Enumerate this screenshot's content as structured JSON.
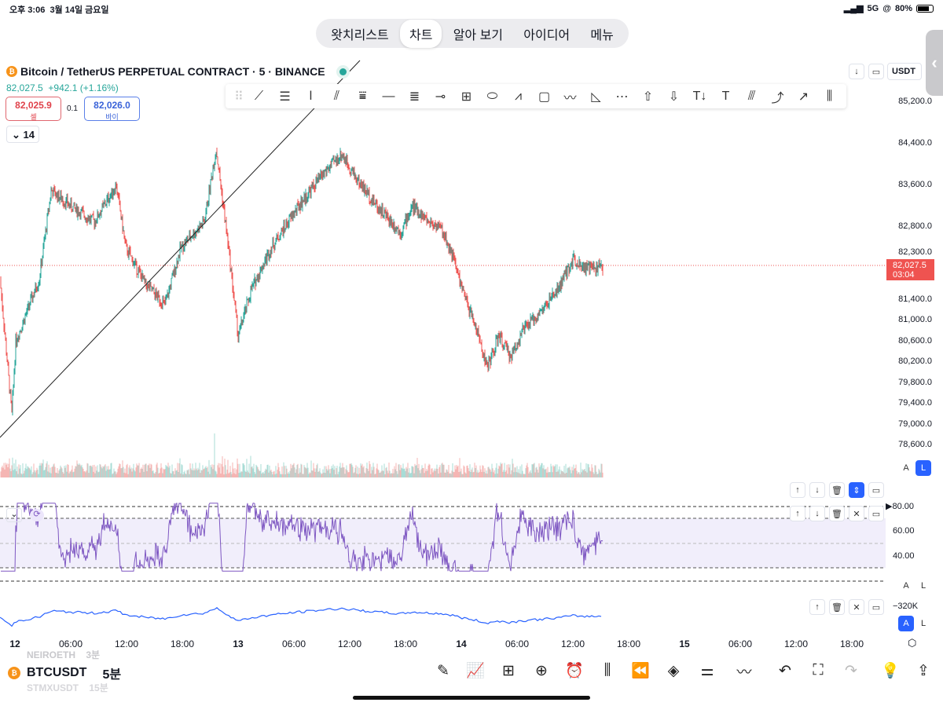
{
  "status": {
    "time": "오후 3:06",
    "date": "3월 14일 금요일",
    "network": "5G",
    "battery": "80%"
  },
  "tabs": [
    {
      "label": "왓치리스트"
    },
    {
      "label": "차트",
      "active": true
    },
    {
      "label": "알아 보기"
    },
    {
      "label": "아이디어"
    },
    {
      "label": "메뉴"
    }
  ],
  "symbol": {
    "title": "Bitcoin / TetherUS PERPETUAL CONTRACT · 5 · BINANCE",
    "last": "82,027.5",
    "change": "+942.1 (+1.16%)",
    "sell_price": "82,025.9",
    "sell_label": "셀",
    "buy_price": "82,026.0",
    "buy_label": "바이",
    "spread": "0.1",
    "indicators_count": "14"
  },
  "right_top": {
    "currency": "USDT"
  },
  "price_axis": {
    "labels": [
      "85,200.0",
      "84,400.0",
      "83,600.0",
      "82,800.0",
      "82,300.0",
      "81,400.0",
      "81,000.0",
      "80,600.0",
      "80,200.0",
      "79,800.0",
      "79,400.0",
      "79,000.0",
      "78,600.0"
    ],
    "values": [
      85200,
      84400,
      83600,
      82800,
      82300,
      81400,
      81000,
      80600,
      80200,
      79800,
      79400,
      79000,
      78600
    ],
    "current_label": "82,027.5",
    "countdown": "03:04"
  },
  "rsi_axis": {
    "labels": [
      "80.00",
      "60.00",
      "40.00"
    ]
  },
  "third_axis": {
    "label": "−320K"
  },
  "scale_buttons": {
    "auto": "A",
    "log": "L"
  },
  "time_axis": [
    {
      "label": "12",
      "bold": true
    },
    {
      "label": "06:00"
    },
    {
      "label": "12:00"
    },
    {
      "label": "18:00"
    },
    {
      "label": "13",
      "bold": true
    },
    {
      "label": "06:00"
    },
    {
      "label": "12:00"
    },
    {
      "label": "18:00"
    },
    {
      "label": "14",
      "bold": true
    },
    {
      "label": "06:00"
    },
    {
      "label": "12:00"
    },
    {
      "label": "18:00"
    },
    {
      "label": "15",
      "bold": true
    },
    {
      "label": "06:00"
    },
    {
      "label": "12:00"
    },
    {
      "label": "18:00"
    }
  ],
  "bottom": {
    "symbol": "BTCUSDT",
    "interval": "5분",
    "prev_symbol": "NEIROETH",
    "prev_interval": "3분",
    "next_symbol": "STMXUSDT",
    "next_interval": "15분"
  },
  "chart_data": {
    "type": "candlestick",
    "price_path": [
      [
        0,
        81800
      ],
      [
        15,
        79200
      ],
      [
        20,
        80600
      ],
      [
        50,
        81800
      ],
      [
        65,
        83500
      ],
      [
        90,
        83200
      ],
      [
        120,
        82900
      ],
      [
        148,
        83600
      ],
      [
        160,
        82400
      ],
      [
        185,
        81700
      ],
      [
        210,
        81300
      ],
      [
        230,
        82400
      ],
      [
        260,
        82900
      ],
      [
        275,
        84300
      ],
      [
        290,
        82500
      ],
      [
        303,
        80700
      ],
      [
        320,
        81600
      ],
      [
        345,
        82400
      ],
      [
        380,
        83200
      ],
      [
        410,
        83800
      ],
      [
        435,
        84200
      ],
      [
        455,
        83700
      ],
      [
        480,
        83200
      ],
      [
        510,
        82700
      ],
      [
        525,
        83200
      ],
      [
        545,
        82900
      ],
      [
        560,
        82800
      ],
      [
        575,
        82300
      ],
      [
        590,
        81500
      ],
      [
        605,
        80900
      ],
      [
        620,
        80100
      ],
      [
        635,
        80700
      ],
      [
        650,
        80300
      ],
      [
        665,
        80800
      ],
      [
        690,
        81200
      ],
      [
        710,
        81600
      ],
      [
        730,
        82200
      ],
      [
        745,
        82000
      ],
      [
        767,
        82027
      ]
    ],
    "up_color": "#26a69a",
    "down_color": "#ef5350"
  }
}
